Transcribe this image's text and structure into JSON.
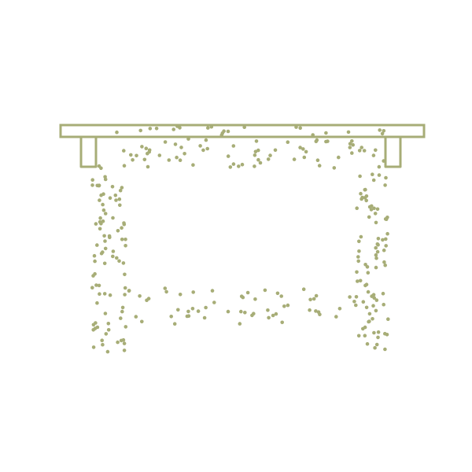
{
  "drawing": {
    "subject": "table",
    "style": "stippled line drawing",
    "colors": {
      "ink": "#a7ad77",
      "background": "#ffffff"
    }
  }
}
